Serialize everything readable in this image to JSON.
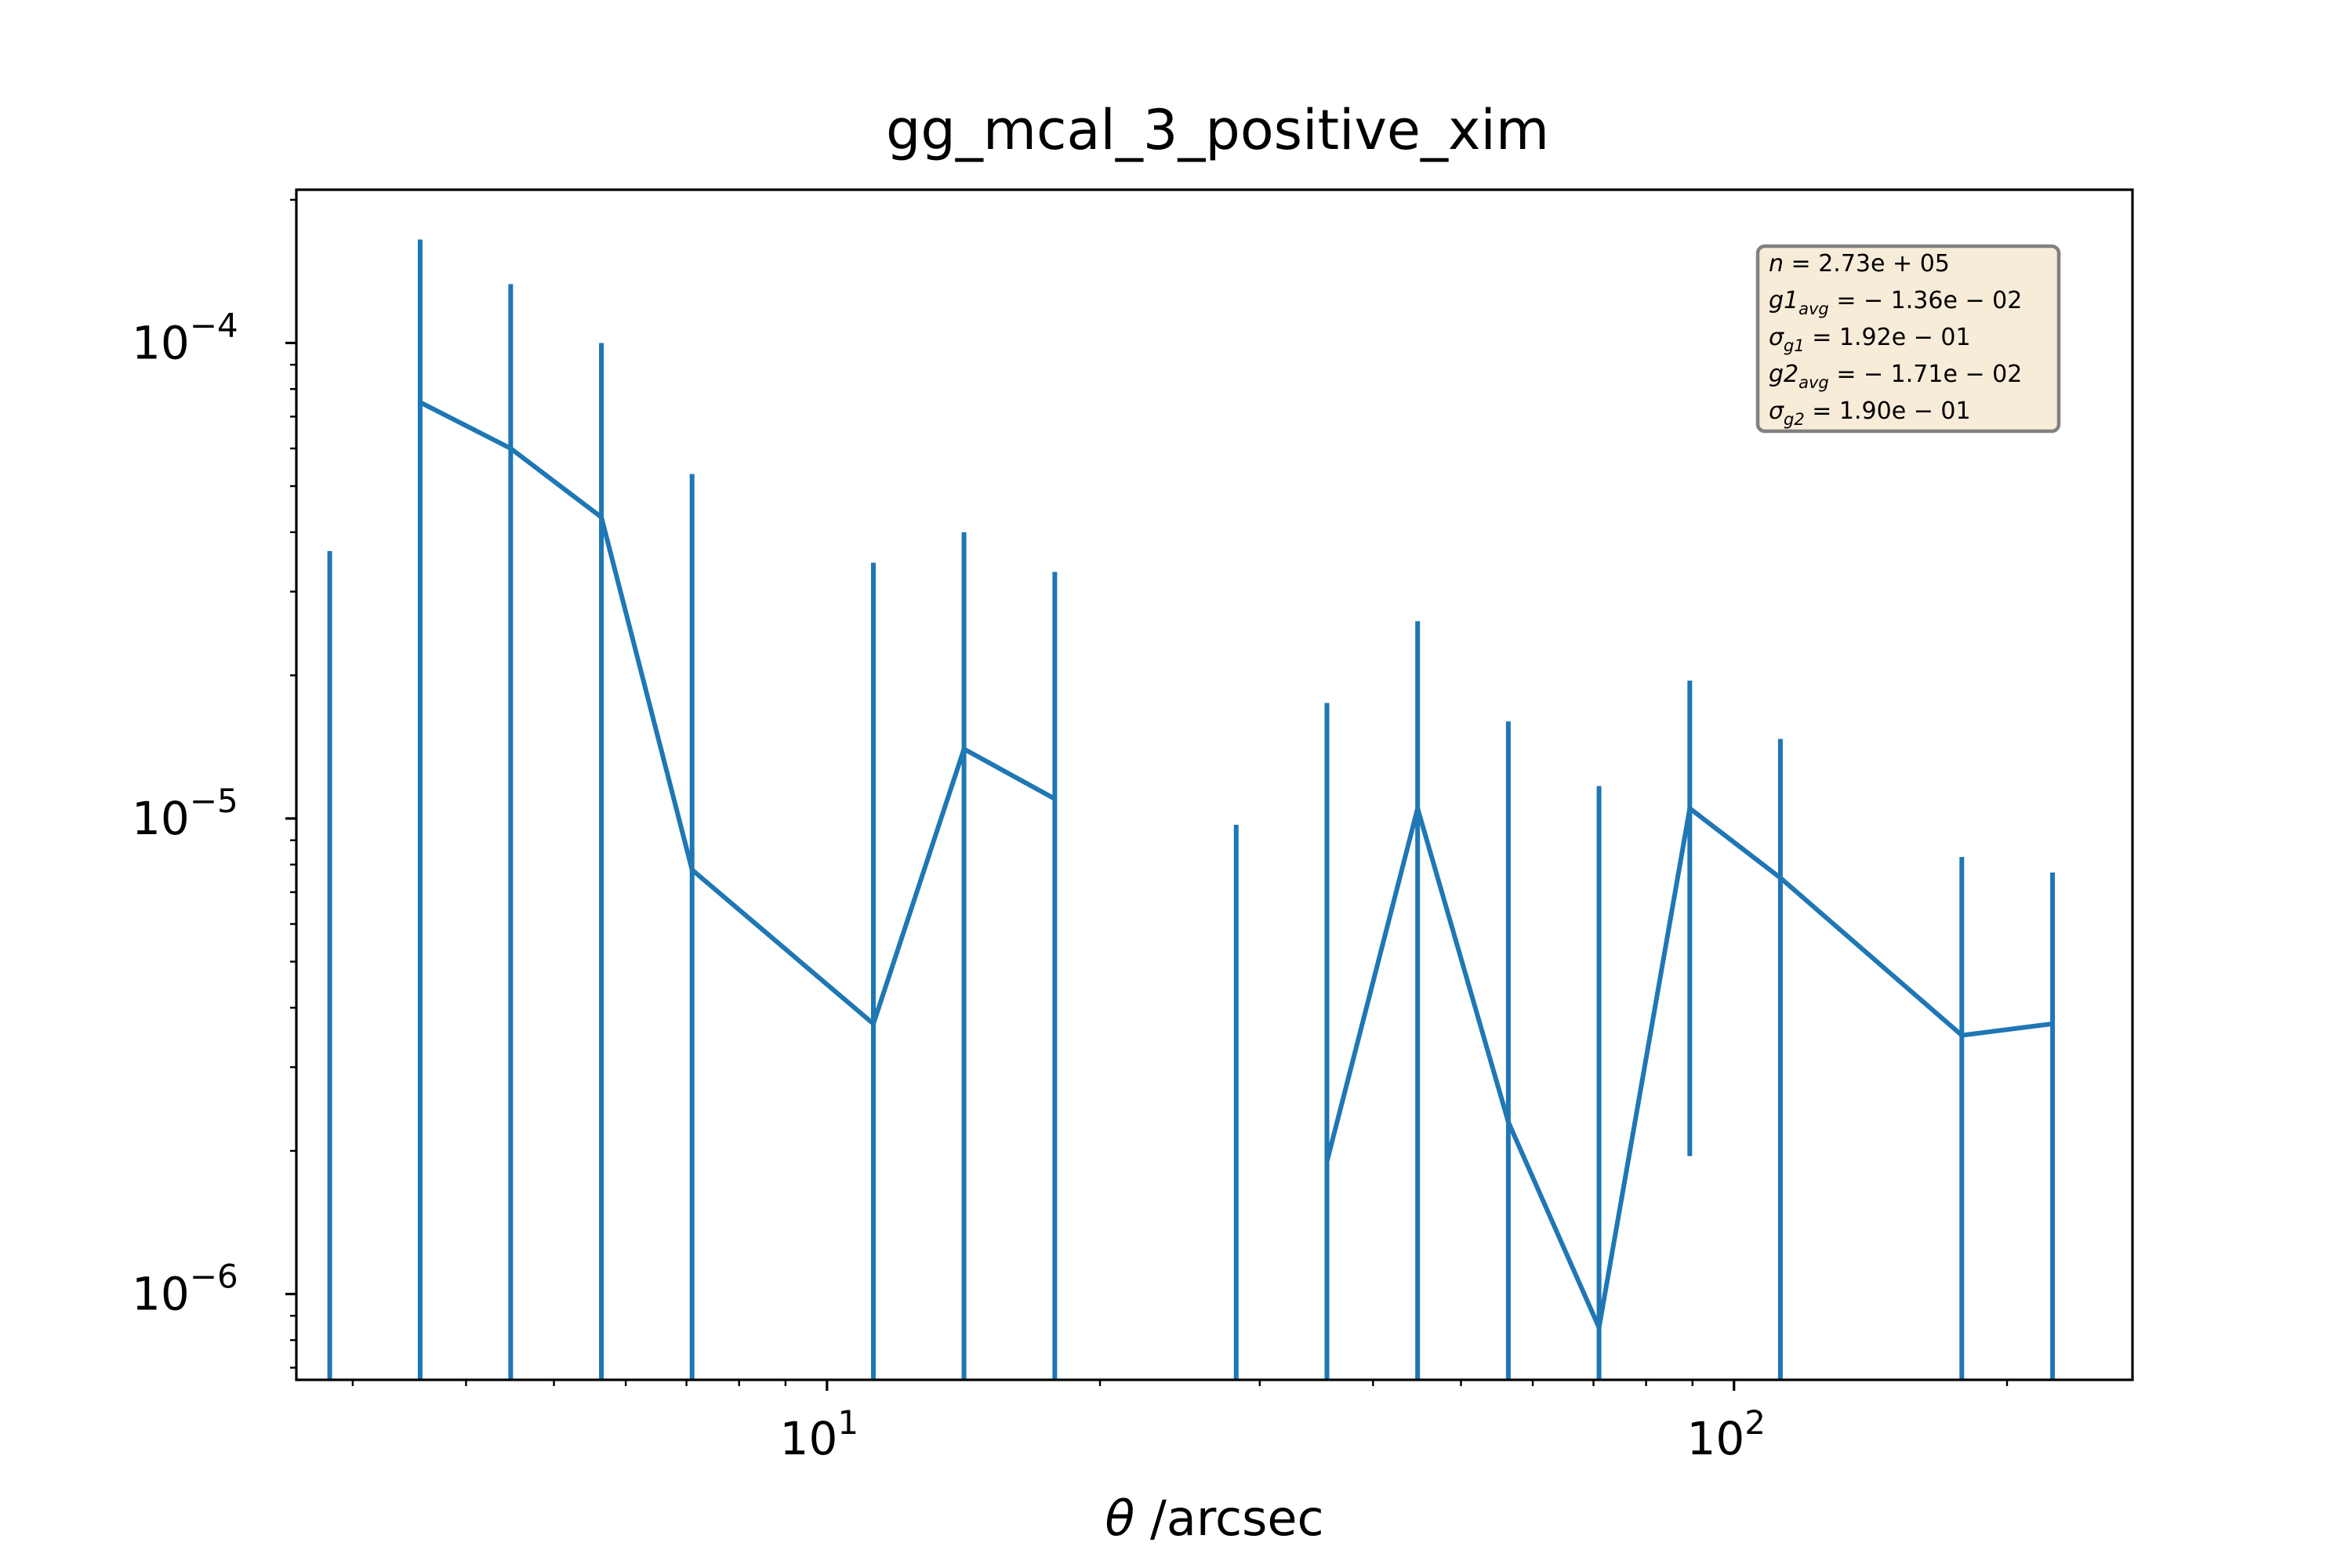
{
  "chart_data": {
    "type": "line",
    "title": "gg_mcal_3_positive_xim",
    "xlabel_symbol": "θ",
    "xlabel_unit": " /arcsec",
    "ylabel": "",
    "xscale": "log",
    "yscale": "log",
    "xlim": [
      2.6,
      275
    ],
    "ylim": [
      6.6e-07,
      0.00021
    ],
    "grid": false,
    "x_ticks": [
      {
        "value": 10,
        "base": "10",
        "exp": "1"
      },
      {
        "value": 100,
        "base": "10",
        "exp": "2"
      }
    ],
    "y_ticks": [
      {
        "value": 0.0001,
        "base": "10",
        "exp": "−4"
      },
      {
        "value": 1e-05,
        "base": "10",
        "exp": "−5"
      },
      {
        "value": 1e-06,
        "base": "10",
        "exp": "−6"
      }
    ],
    "series": [
      {
        "color": "#1f77b4",
        "points": [
          {
            "x": 2.83,
            "y": null,
            "ylow": 6.6e-07,
            "yhigh": 3.65e-05
          },
          {
            "x": 3.56,
            "y": 7.5e-05,
            "ylow": 6.6e-07,
            "yhigh": 0.000165
          },
          {
            "x": 4.48,
            "y": 6e-05,
            "ylow": 6.6e-07,
            "yhigh": 0.000133
          },
          {
            "x": 5.64,
            "y": 4.3e-05,
            "ylow": 6.6e-07,
            "yhigh": 0.0001
          },
          {
            "x": 7.1,
            "y": 7.8e-06,
            "ylow": 6.6e-07,
            "yhigh": 5.3e-05
          },
          {
            "x": 11.25,
            "y": 3.7e-06,
            "ylow": 6.6e-07,
            "yhigh": 3.45e-05
          },
          {
            "x": 14.16,
            "y": 1.4e-05,
            "ylow": 6.6e-07,
            "yhigh": 4e-05
          },
          {
            "x": 17.83,
            "y": 1.1e-05,
            "ylow": 6.6e-07,
            "yhigh": 3.3e-05
          },
          {
            "x": 28.26,
            "y": null,
            "ylow": 6.6e-07,
            "yhigh": 9.7e-06
          },
          {
            "x": 35.58,
            "y": 1.9e-06,
            "ylow": 6.6e-07,
            "yhigh": 1.75e-05
          },
          {
            "x": 44.79,
            "y": 1.05e-05,
            "ylow": 6.6e-07,
            "yhigh": 2.6e-05
          },
          {
            "x": 56.39,
            "y": 2.3e-06,
            "ylow": 6.6e-07,
            "yhigh": 1.6e-05
          },
          {
            "x": 70.99,
            "y": 8.5e-07,
            "ylow": 6.6e-07,
            "yhigh": 1.17e-05
          },
          {
            "x": 89.38,
            "y": 1.05e-05,
            "ylow": 1.95e-06,
            "yhigh": 1.95e-05
          },
          {
            "x": 112.5,
            "y": 7.5e-06,
            "ylow": 6.6e-07,
            "yhigh": 1.47e-05
          },
          {
            "x": 178.3,
            "y": 3.5e-06,
            "ylow": 6.6e-07,
            "yhigh": 8.3e-06
          },
          {
            "x": 224.5,
            "y": 3.7e-06,
            "ylow": 6.6e-07,
            "yhigh": 7.7e-06
          }
        ]
      }
    ],
    "annotation": {
      "placement": "top-right",
      "background": "#f7ecd8",
      "border": "#808080",
      "lines": [
        {
          "sym": "n",
          "sub": "",
          "value": " = 2.73e + 05"
        },
        {
          "sym": "g1",
          "sub": "avg",
          "value": " = − 1.36e − 02"
        },
        {
          "sym": "σ",
          "sub": "g1",
          "value": " = 1.92e − 01"
        },
        {
          "sym": "g2",
          "sub": "avg",
          "value": " = − 1.71e − 02"
        },
        {
          "sym": "σ",
          "sub": "g2",
          "value": " = 1.90e − 01"
        }
      ]
    }
  }
}
